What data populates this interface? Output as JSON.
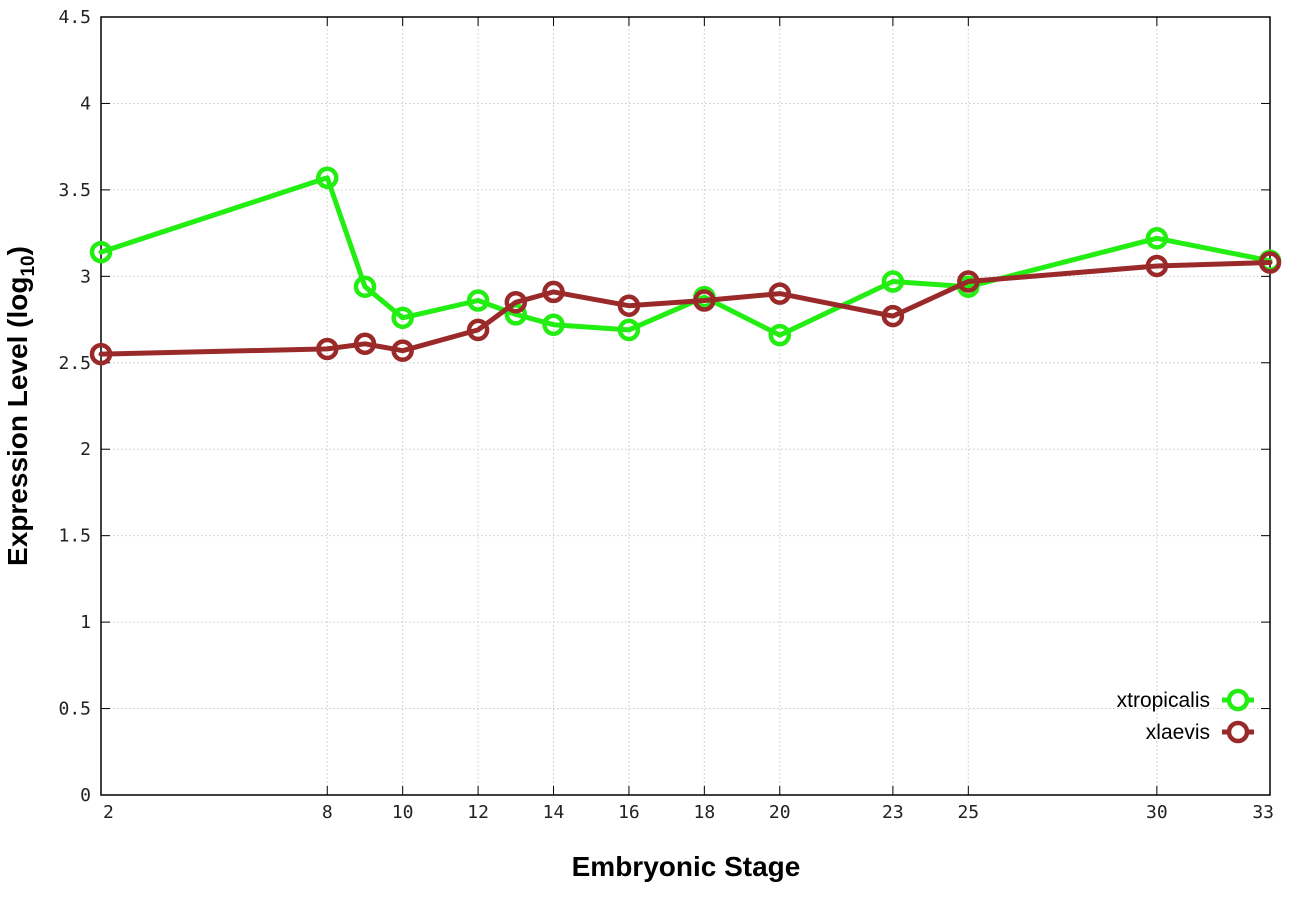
{
  "chart_data": {
    "type": "line",
    "xlabel": "Embryonic Stage",
    "ylabel": {
      "main": "Expression Level (log",
      "sub": "10",
      "close": ")"
    },
    "xlim": [
      2,
      33
    ],
    "ylim": [
      0,
      4.5
    ],
    "x_ticks": [
      2,
      8,
      10,
      12,
      14,
      16,
      18,
      20,
      23,
      25,
      30,
      33
    ],
    "x_tick_labels": [
      "2",
      "8",
      "10",
      "12",
      "14",
      "16",
      "18",
      "20",
      "23",
      "25",
      "30",
      "33"
    ],
    "y_ticks": [
      0,
      0.5,
      1,
      1.5,
      2,
      2.5,
      3,
      3.5,
      4,
      4.5
    ],
    "y_tick_labels": [
      "0",
      "0.5",
      "1",
      "1.5",
      "2",
      "2.5",
      "3",
      "3.5",
      "4",
      "4.5"
    ],
    "grid": true,
    "legend_position": "bottom-right",
    "series": [
      {
        "name": "xtropicalis",
        "color": "#22ee11",
        "points": [
          [
            2,
            3.14
          ],
          [
            8,
            3.57
          ],
          [
            9,
            2.94
          ],
          [
            10,
            2.76
          ],
          [
            12,
            2.86
          ],
          [
            13,
            2.78
          ],
          [
            14,
            2.72
          ],
          [
            16,
            2.69
          ],
          [
            18,
            2.88
          ],
          [
            20,
            2.66
          ],
          [
            23,
            2.97
          ],
          [
            25,
            2.94
          ],
          [
            30,
            3.22
          ],
          [
            33,
            3.09
          ]
        ]
      },
      {
        "name": "xlaevis",
        "color": "#9a2a2a",
        "points": [
          [
            2,
            2.55
          ],
          [
            8,
            2.58
          ],
          [
            9,
            2.61
          ],
          [
            10,
            2.57
          ],
          [
            12,
            2.69
          ],
          [
            13,
            2.85
          ],
          [
            14,
            2.91
          ],
          [
            16,
            2.83
          ],
          [
            18,
            2.86
          ],
          [
            20,
            2.9
          ],
          [
            23,
            2.77
          ],
          [
            25,
            2.97
          ],
          [
            30,
            3.06
          ],
          [
            33,
            3.08
          ]
        ]
      }
    ]
  }
}
